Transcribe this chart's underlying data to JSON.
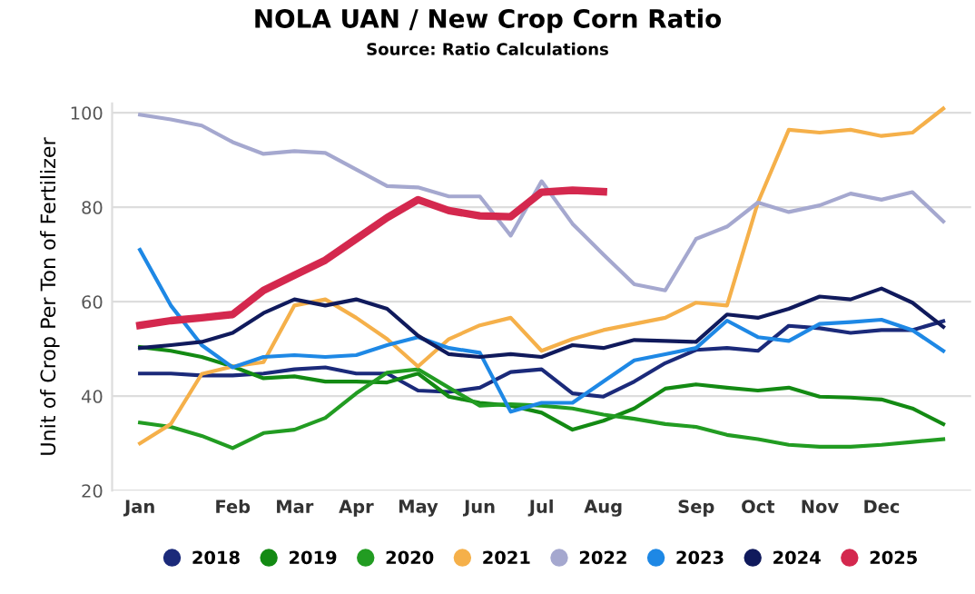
{
  "chart_data": {
    "type": "line",
    "title": "NOLA UAN / New Crop Corn Ratio",
    "subtitle": "Source: Ratio Calculations",
    "ylabel": "Unit of Crop Per Ton of Fertilizer",
    "categories": [
      "Jan",
      null,
      null,
      "Feb",
      null,
      "Mar",
      null,
      "Apr",
      null,
      "May",
      null,
      "Jun",
      null,
      "Jul",
      null,
      "Aug",
      null,
      null,
      "Sep",
      null,
      "Oct",
      null,
      "Nov",
      null,
      "Dec",
      null,
      null
    ],
    "series": [
      {
        "name": "2018",
        "color": "#1b2a7a",
        "values": [
          44.8,
          44.8,
          44.4,
          44.4,
          44.8,
          45.7,
          46.1,
          44.8,
          44.8,
          41.2,
          40.9,
          41.8,
          45.1,
          45.7,
          40.6,
          39.9,
          43.1,
          47,
          49.8,
          50.2,
          49.6,
          54.9,
          54.4,
          53.4,
          54,
          54,
          55.9
        ]
      },
      {
        "name": "2019",
        "color": "#138a13",
        "values": [
          50.4,
          49.6,
          48.3,
          46.3,
          43.8,
          44.2,
          43.1,
          43.1,
          42.9,
          44.8,
          39.9,
          38.6,
          38,
          36.5,
          32.9,
          34.8,
          37.4,
          41.6,
          42.5,
          41.8,
          41.2,
          41.8,
          39.9,
          39.7,
          39.3,
          37.4,
          34.1
        ]
      },
      {
        "name": "2020",
        "color": "#229c22",
        "values": [
          34.4,
          33.5,
          31.6,
          29,
          32.2,
          32.9,
          35.4,
          40.6,
          45,
          45.7,
          41.8,
          38,
          38.3,
          38,
          37.4,
          36.1,
          35.2,
          34.1,
          33.5,
          31.8,
          30.9,
          29.7,
          29.3,
          29.3,
          29.7,
          30.3,
          30.9
        ]
      },
      {
        "name": "2021",
        "color": "#f5b04a",
        "values": [
          30,
          34.1,
          44.7,
          46.3,
          47.2,
          59.2,
          60.5,
          56.6,
          52.1,
          46.3,
          52.1,
          55,
          56.6,
          49.6,
          52.1,
          54,
          55.3,
          56.6,
          59.8,
          59.2,
          81,
          96.4,
          95.8,
          96.4,
          95.1,
          95.8,
          100.9
        ]
      },
      {
        "name": "2022",
        "color": "#a5a8cf",
        "values": [
          99.6,
          98.6,
          97.3,
          93.8,
          91.3,
          91.9,
          91.5,
          88,
          84.5,
          84.2,
          82.3,
          82.3,
          74,
          85.5,
          76.5,
          70,
          63.7,
          62.4,
          73.3,
          75.9,
          81,
          79,
          80.4,
          82.9,
          81.6,
          83.2,
          77
        ]
      },
      {
        "name": "2023",
        "color": "#1e88e5",
        "values": [
          71,
          59.2,
          50.8,
          46.1,
          48.3,
          48.7,
          48.3,
          48.7,
          50.8,
          52.5,
          50.2,
          49.2,
          36.7,
          38.6,
          38.6,
          43.1,
          47.6,
          48.9,
          50.2,
          56,
          52.5,
          51.7,
          55.3,
          55.7,
          56.2,
          54,
          49.6
        ]
      },
      {
        "name": "2024",
        "color": "#101a5c",
        "values": [
          50.2,
          50.8,
          51.5,
          53.4,
          57.6,
          60.5,
          59.2,
          60.5,
          58.5,
          52.8,
          48.9,
          48.3,
          48.9,
          48.3,
          50.8,
          50.2,
          51.9,
          51.7,
          51.5,
          57.3,
          56.6,
          58.5,
          61.1,
          60.5,
          62.8,
          59.8,
          54.7
        ]
      },
      {
        "name": "2025",
        "color": "#d4284e",
        "values": [
          55,
          56,
          56.6,
          57.3,
          62.4,
          65.6,
          68.8,
          73.3,
          77.8,
          81.6,
          79.3,
          78.2,
          78,
          83.2,
          83.6,
          83.3,
          null,
          null,
          null,
          null,
          null,
          null,
          null,
          null,
          null,
          null,
          null
        ]
      }
    ],
    "ylim": [
      20,
      102
    ],
    "yticks": [
      20,
      40,
      60,
      80,
      100
    ],
    "grid": "y",
    "legend": "bottom"
  }
}
